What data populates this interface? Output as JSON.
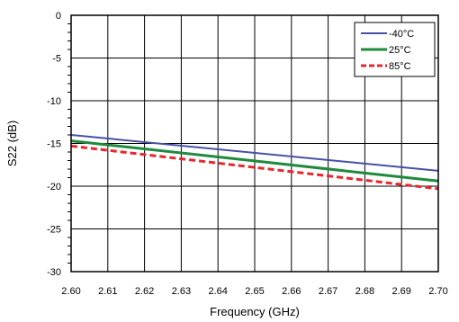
{
  "chart_data": {
    "type": "line",
    "title": "",
    "xlabel": "Frequency (GHz)",
    "ylabel": "S22 (dB)",
    "xlim": [
      2.6,
      2.7
    ],
    "ylim": [
      -30,
      0
    ],
    "x_ticks": [
      "2.60",
      "2.61",
      "2.62",
      "2.63",
      "2.64",
      "2.65",
      "2.66",
      "2.67",
      "2.68",
      "2.69",
      "2.70"
    ],
    "y_ticks": [
      "0",
      "-5",
      "-10",
      "-15",
      "-20",
      "-25",
      "-30"
    ],
    "grid": true,
    "legend_position": "top-right",
    "series": [
      {
        "name": "-40°C",
        "color": "#4651a3",
        "style": "solid",
        "x": [
          2.6,
          2.7
        ],
        "values": [
          -14.0,
          -18.2
        ]
      },
      {
        "name": "25°C",
        "color": "#1f8a3c",
        "style": "solid",
        "x": [
          2.6,
          2.7
        ],
        "values": [
          -14.7,
          -19.4
        ]
      },
      {
        "name": "85°C",
        "color": "#e8262b",
        "style": "dashed",
        "x": [
          2.6,
          2.7
        ],
        "values": [
          -15.3,
          -20.3
        ]
      }
    ]
  }
}
